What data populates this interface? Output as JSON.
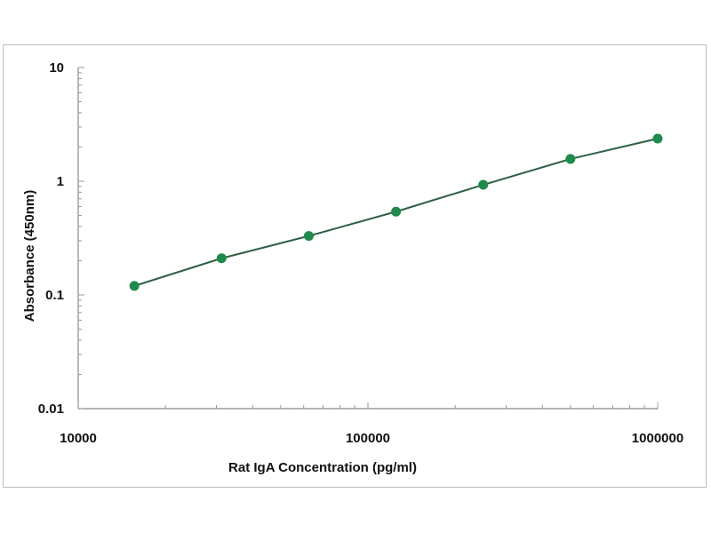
{
  "chart_data": {
    "type": "line",
    "title": "",
    "xlabel": "Rat IgA Concentration (pg/ml)",
    "ylabel": "Absorbance (450nm)",
    "xscale": "log",
    "yscale": "log",
    "xlim": [
      10000,
      1000000
    ],
    "ylim": [
      0.01,
      10
    ],
    "xticks": [
      "10000",
      "100000",
      "1000000"
    ],
    "yticks": [
      "0.01",
      "0.1",
      "1",
      "10"
    ],
    "grid": false,
    "legend": "none",
    "series": [
      {
        "x": [
          15625,
          31250,
          62500,
          125000,
          250000,
          500000,
          1000000
        ],
        "y": [
          0.12,
          0.21,
          0.33,
          0.54,
          0.93,
          1.57,
          2.37
        ],
        "color": "#1e8a4c",
        "line_color": "#2f5f44"
      }
    ]
  }
}
